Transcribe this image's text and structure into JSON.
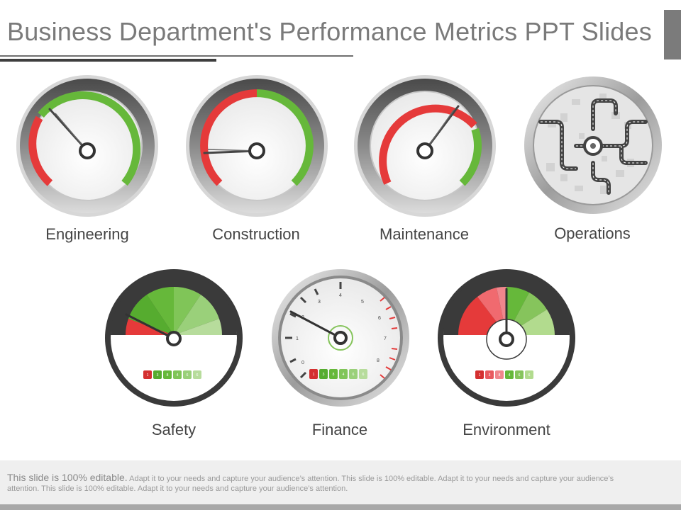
{
  "title": "Business Department's Performance Metrics PPT Slides",
  "gauges": [
    {
      "label": "Engineering",
      "type": "dial",
      "icon": "speedometer-icon"
    },
    {
      "label": "Construction",
      "type": "dial",
      "icon": "speedometer-icon"
    },
    {
      "label": "Maintenance",
      "type": "dial",
      "icon": "speedometer-icon"
    },
    {
      "label": "Operations",
      "type": "map",
      "icon": "road-map-icon"
    },
    {
      "label": "Safety",
      "type": "sector",
      "icon": "gauge-icon"
    },
    {
      "label": "Finance",
      "type": "clock",
      "icon": "clock-gauge-icon"
    },
    {
      "label": "Environment",
      "type": "sector",
      "icon": "gauge-icon"
    }
  ],
  "finance_dial_numbers": [
    "0",
    "1",
    "2",
    "3",
    "4",
    "5",
    "6",
    "7",
    "8"
  ],
  "scale_labels": [
    "1",
    "3",
    "8",
    "4",
    "6",
    "6"
  ],
  "footer": {
    "lead": "This slide is 100% editable.",
    "body": "Adapt it to your needs and capture your audience’s attention. This slide is 100% editable. Adapt it to your needs and capture your audience’s attention. This slide is 100% editable. Adapt it to your needs and capture your audience’s attention."
  },
  "colors": {
    "red": "#e53a3a",
    "green": "#66b83a",
    "light_green": "#b2db8e",
    "pink": "#f0868c",
    "title_gray": "#7a7a7a"
  }
}
